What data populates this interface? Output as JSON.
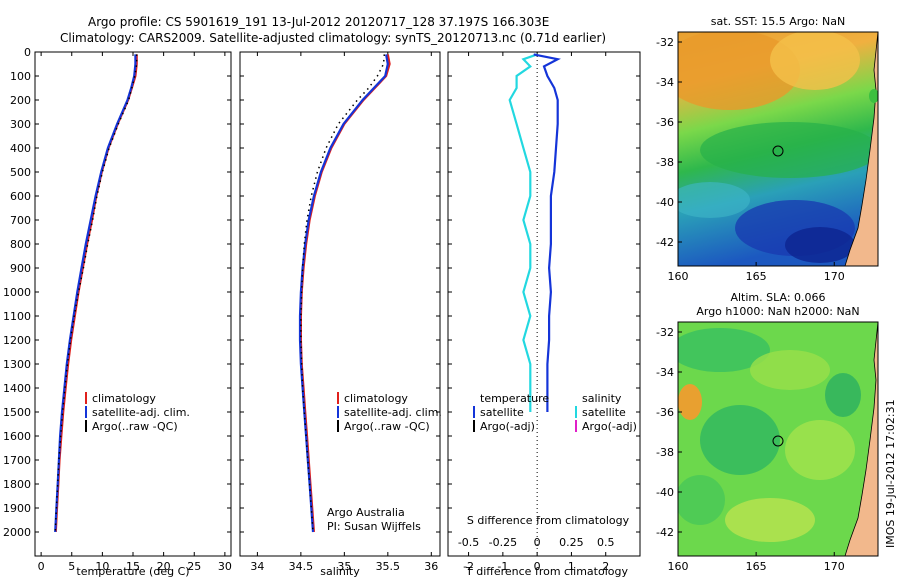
{
  "header": {
    "line1": "Argo profile: CS 5901619_191 13-Jul-2012 20120717_128 37.197S 166.303E",
    "line2": "Climatology: CARS2009. Satellite-adjusted climatology: synTS_20120713.nc (0.71d earlier)"
  },
  "colors": {
    "climatology": "#e0201c",
    "satellite_adj": "#1434d8",
    "argo": "#000000",
    "salinity_sat": "#22d8e0",
    "salinity_argo": "#e020c8"
  },
  "chart_data": [
    {
      "type": "line",
      "id": "temperature",
      "xlabel": "temperature (deg C)",
      "xlim": [
        -1,
        31
      ],
      "xticks": [
        0,
        5,
        10,
        15,
        20,
        25,
        30
      ],
      "ylim": [
        0,
        2100
      ],
      "yreversed": true,
      "yticks": [
        0,
        100,
        200,
        300,
        400,
        500,
        600,
        700,
        800,
        900,
        1000,
        1100,
        1200,
        1300,
        1400,
        1500,
        1600,
        1700,
        1800,
        1900,
        2000
      ],
      "legend": [
        "climatology",
        "satellite-adj. clim.",
        "Argo(..raw -QC)"
      ],
      "depth": [
        10,
        50,
        100,
        150,
        200,
        300,
        400,
        500,
        600,
        700,
        800,
        900,
        1000,
        1100,
        1200,
        1300,
        1400,
        1500,
        1600,
        1700,
        1800,
        1900,
        2000
      ],
      "series": [
        {
          "name": "climatology",
          "values": [
            15.6,
            15.6,
            15.4,
            14.8,
            14.2,
            12.5,
            11.0,
            9.9,
            9.0,
            8.3,
            7.5,
            6.8,
            6.1,
            5.5,
            4.9,
            4.4,
            4.0,
            3.6,
            3.3,
            3.0,
            2.8,
            2.6,
            2.4
          ]
        },
        {
          "name": "satellite-adj. clim.",
          "values": [
            15.4,
            15.4,
            15.2,
            14.7,
            14.1,
            12.4,
            10.9,
            9.8,
            8.9,
            8.1,
            7.3,
            6.6,
            5.9,
            5.3,
            4.7,
            4.2,
            3.8,
            3.4,
            3.1,
            2.9,
            2.7,
            2.5,
            2.3
          ]
        },
        {
          "name": "Argo(..raw -QC)",
          "values": [
            15.6,
            15.6,
            15.3,
            14.8,
            14.3,
            12.6,
            11.1,
            10.0,
            9.1,
            8.4,
            7.6,
            6.9,
            6.1,
            5.4,
            4.8,
            4.3,
            3.9,
            3.5,
            3.2,
            2.9,
            2.7,
            2.5,
            2.3
          ]
        }
      ]
    },
    {
      "type": "line",
      "id": "salinity",
      "xlabel": "salinity",
      "xlim": [
        33.8,
        36.1
      ],
      "xticks": [
        34,
        34.5,
        35,
        35.5,
        36
      ],
      "ylim": [
        0,
        2100
      ],
      "yreversed": true,
      "legend": [
        "climatology",
        "satellite-adj. clim.",
        "Argo(..raw -QC)"
      ],
      "annotation": [
        "Argo Australia",
        "PI: Susan Wijffels"
      ],
      "depth": [
        10,
        50,
        100,
        150,
        200,
        300,
        400,
        500,
        600,
        700,
        800,
        900,
        1000,
        1100,
        1200,
        1300,
        1400,
        1500,
        1600,
        1700,
        1800,
        1900,
        2000
      ],
      "series": [
        {
          "name": "climatology",
          "values": [
            35.5,
            35.52,
            35.48,
            35.35,
            35.22,
            35.0,
            34.85,
            34.74,
            34.66,
            34.6,
            34.56,
            34.53,
            34.51,
            34.5,
            34.5,
            34.51,
            34.53,
            34.55,
            34.57,
            34.59,
            34.61,
            34.63,
            34.65
          ]
        },
        {
          "name": "satellite-adj. clim.",
          "values": [
            35.48,
            35.5,
            35.47,
            35.34,
            35.21,
            34.99,
            34.84,
            34.73,
            34.65,
            34.59,
            34.55,
            34.52,
            34.5,
            34.49,
            34.49,
            34.5,
            34.52,
            34.54,
            34.56,
            34.58,
            34.6,
            34.62,
            34.64
          ]
        },
        {
          "name": "Argo(..raw -QC)",
          "values": [
            35.46,
            35.45,
            35.38,
            35.28,
            35.15,
            34.93,
            34.79,
            34.69,
            34.62,
            34.57,
            34.54,
            34.52,
            34.51,
            34.5,
            34.5,
            34.51,
            34.52,
            34.54,
            34.56,
            34.58,
            34.6,
            34.62,
            34.64
          ]
        }
      ]
    },
    {
      "type": "line",
      "id": "difference",
      "xlabel": "T difference from climatology",
      "xlabel_top": "S difference from climatology",
      "xlim": [
        -2.6,
        3.0
      ],
      "xticks": [
        -2,
        -1,
        0,
        1,
        2
      ],
      "xticks_top": [
        -0.5,
        -0.25,
        0,
        0.25,
        0.5
      ],
      "xticks_top_labels": [
        "-0.5",
        "-0.25",
        "0",
        "0.25",
        "0.5"
      ],
      "ylim": [
        0,
        2100
      ],
      "yreversed": true,
      "legend_temperature_title": "temperature",
      "legend_salinity_title": "salinity",
      "legend_temperature": [
        "satellite",
        "Argo(-adj)"
      ],
      "legend_salinity": [
        "satellite",
        "Argo(-adj)"
      ],
      "depth": [
        10,
        30,
        60,
        100,
        150,
        200,
        300,
        400,
        500,
        600,
        700,
        800,
        900,
        1000,
        1100,
        1200,
        1300,
        1400,
        1500
      ],
      "series": [
        {
          "name": "temperature satellite",
          "values": [
            -0.1,
            0.6,
            0.2,
            0.3,
            0.5,
            0.6,
            0.6,
            0.55,
            0.5,
            0.4,
            0.4,
            0.4,
            0.35,
            0.4,
            0.35,
            0.35,
            0.3,
            0.3,
            0.3
          ]
        },
        {
          "name": "salinity satellite",
          "values": [
            0,
            -0.1,
            -0.05,
            -0.15,
            -0.15,
            -0.2,
            -0.15,
            -0.1,
            -0.05,
            -0.05,
            -0.1,
            -0.05,
            -0.05,
            -0.1,
            -0.05,
            -0.1,
            -0.05,
            -0.05,
            -0.05
          ]
        }
      ]
    },
    {
      "type": "heatmap",
      "id": "sst-map",
      "title": "sat. SST: 15.5 Argo: NaN",
      "xticks": [
        160,
        165,
        170
      ],
      "yticks": [
        -32,
        -34,
        -36,
        -38,
        -40,
        -42
      ],
      "marker": {
        "lon": 166.3,
        "lat": -37.2
      }
    },
    {
      "type": "heatmap",
      "id": "sla-map",
      "title_line1": "Altim. SLA: 0.066",
      "title_line2": "Argo h1000: NaN h2000: NaN",
      "xticks": [
        160,
        165,
        170
      ],
      "yticks": [
        -32,
        -34,
        -36,
        -38,
        -40,
        -42
      ],
      "marker": {
        "lon": 166.3,
        "lat": -37.2
      }
    }
  ],
  "footer": {
    "stamp": "IMOS 19-Jul-2012 17:02:31"
  }
}
